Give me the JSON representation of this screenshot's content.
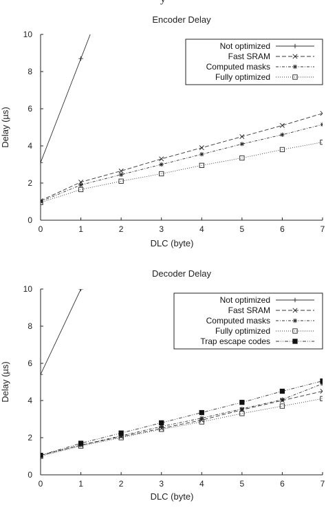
{
  "page_caption": "y",
  "chart_data": [
    {
      "type": "line",
      "title": "Encoder Delay",
      "xlabel": "DLC (byte)",
      "ylabel": "Delay (µs)",
      "xlim": [
        0,
        7
      ],
      "ylim": [
        0,
        10
      ],
      "x_ticks": [
        0,
        1,
        2,
        3,
        4,
        5,
        6,
        7
      ],
      "y_ticks": [
        0,
        2,
        4,
        6,
        8,
        10
      ],
      "grid": false,
      "legend_position": "top-right",
      "x": [
        0,
        1,
        2,
        3,
        4,
        5,
        6,
        7
      ],
      "series": [
        {
          "name": "Not optimized",
          "x": [
            0,
            1,
            2
          ],
          "values": [
            3.1,
            8.7,
            14.3
          ],
          "marker": "plus",
          "dash": ""
        },
        {
          "name": "Fast SRAM",
          "values": [
            1.05,
            2.05,
            2.65,
            3.3,
            3.9,
            4.5,
            5.1,
            5.75
          ],
          "marker": "cross",
          "dash": "6,3"
        },
        {
          "name": "Computed masks",
          "values": [
            1.0,
            1.9,
            2.45,
            3.0,
            3.55,
            4.1,
            4.6,
            5.15
          ],
          "marker": "star",
          "dash": "4,2,1,2"
        },
        {
          "name": "Fully optimized",
          "values": [
            0.95,
            1.65,
            2.1,
            2.5,
            2.95,
            3.35,
            3.8,
            4.2
          ],
          "marker": "square",
          "dash": "1,2"
        }
      ]
    },
    {
      "type": "line",
      "title": "Decoder Delay",
      "xlabel": "DLC (byte)",
      "ylabel": "Delay (µs)",
      "xlim": [
        0,
        7
      ],
      "ylim": [
        0,
        10
      ],
      "x_ticks": [
        0,
        1,
        2,
        3,
        4,
        5,
        6,
        7
      ],
      "y_ticks": [
        0,
        2,
        4,
        6,
        8,
        10
      ],
      "grid": false,
      "legend_position": "top-right",
      "x": [
        0,
        1,
        2,
        3,
        4,
        5,
        6,
        7
      ],
      "series": [
        {
          "name": "Not optimized",
          "x": [
            0,
            1,
            2
          ],
          "values": [
            5.4,
            10.0,
            14.6
          ],
          "marker": "plus",
          "dash": ""
        },
        {
          "name": "Fast SRAM",
          "values": [
            1.05,
            1.6,
            2.05,
            2.5,
            2.95,
            3.5,
            4.0,
            4.5
          ],
          "marker": "cross",
          "dash": "6,3"
        },
        {
          "name": "Computed masks",
          "values": [
            1.05,
            1.6,
            2.1,
            2.6,
            3.05,
            3.55,
            4.05,
            4.9
          ],
          "marker": "star",
          "dash": "4,2,1,2"
        },
        {
          "name": "Fully optimized",
          "values": [
            1.0,
            1.55,
            2.0,
            2.45,
            2.85,
            3.3,
            3.7,
            4.1
          ],
          "marker": "square",
          "dash": "1,2"
        },
        {
          "name": "Trap escape codes",
          "values": [
            1.05,
            1.7,
            2.25,
            2.8,
            3.35,
            3.9,
            4.5,
            5.05
          ],
          "marker": "filled-square",
          "dash": "5,2,1,2,1,2"
        }
      ]
    }
  ]
}
